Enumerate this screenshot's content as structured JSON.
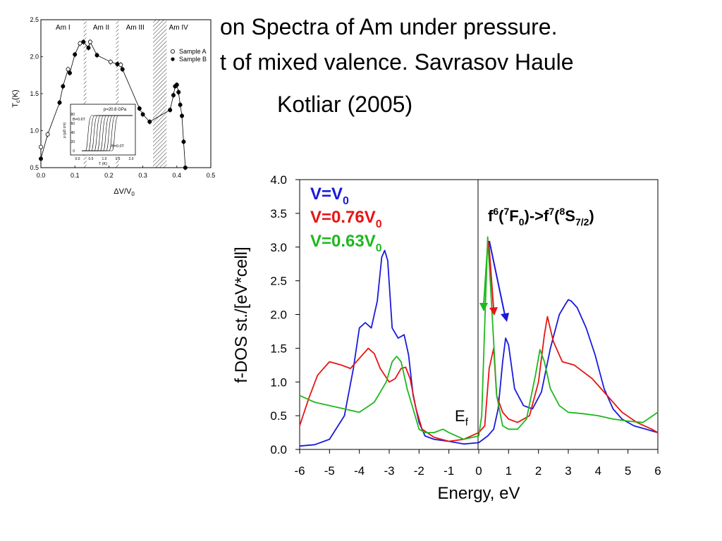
{
  "slide": {
    "title_line1": "on Spectra of Am under pressure.",
    "title_line2": "t of mixed valence. Savrasov Haule",
    "title_line3": "Kotliar (2005)"
  },
  "chart_data": [
    {
      "type": "scatter",
      "xlabel": "ΔV/V",
      "xlabel_sub": "0",
      "ylabel": "T",
      "ylabel_sub": "c",
      "ylabel_unit": "(K)",
      "xlim": [
        0,
        0.5
      ],
      "ylim": [
        0.5,
        2.5
      ],
      "x_ticks": [
        "0.0",
        "0.1",
        "0.2",
        "0.3",
        "0.4",
        "0.5"
      ],
      "y_ticks": [
        "0.5",
        "1.0",
        "1.5",
        "2.0",
        "2.5"
      ],
      "phases": [
        "Am I",
        "Am II",
        "Am III",
        "Am IV"
      ],
      "phase_boundaries": [
        0.13,
        0.225,
        0.33,
        0.37
      ],
      "legend": [
        {
          "label": "Sample A",
          "marker": "open-circle"
        },
        {
          "label": "Sample B",
          "marker": "filled-circle"
        }
      ],
      "series": [
        {
          "name": "Sample A",
          "marker": "open",
          "x": [
            0.0,
            0.02,
            0.08,
            0.115,
            0.145,
            0.205,
            0.235
          ],
          "y": [
            0.78,
            0.95,
            1.83,
            2.18,
            2.2,
            1.93,
            1.89
          ]
        },
        {
          "name": "Sample B",
          "marker": "filled",
          "x": [
            0.0,
            0.055,
            0.065,
            0.085,
            0.1,
            0.125,
            0.14,
            0.165,
            0.225,
            0.24,
            0.29,
            0.3,
            0.32,
            0.38,
            0.39,
            0.395,
            0.4,
            0.405,
            0.41,
            0.415,
            0.42,
            0.425
          ],
          "y": [
            0.62,
            1.38,
            1.6,
            1.78,
            2.03,
            2.2,
            2.12,
            2.02,
            1.9,
            1.83,
            1.3,
            1.22,
            1.12,
            1.28,
            1.48,
            1.6,
            1.62,
            1.52,
            1.35,
            1.2,
            0.85,
            0.5
          ]
        }
      ],
      "inset": {
        "label_pressure": "p=20.8 GPa",
        "label_b_high": "B=0.6T",
        "label_b_zero": "B=0.0T",
        "xlabel": "T (K)",
        "ylabel": "ρ (μΩ cm)",
        "x_ticks": [
          "0.0",
          "0.5",
          "1.0",
          "1.5",
          "2.0"
        ],
        "y_ticks": [
          "0",
          "20",
          "40",
          "60",
          "80"
        ]
      }
    },
    {
      "type": "line",
      "xlabel": "Energy, eV",
      "ylabel": "f-DOS st./[eV*cell]",
      "xlim": [
        -6,
        6
      ],
      "ylim": [
        0,
        4.0
      ],
      "x_ticks": [
        "-6",
        "-5",
        "-4",
        "-3",
        "-2",
        "-1",
        "0",
        "1",
        "2",
        "3",
        "4",
        "5",
        "6"
      ],
      "y_ticks": [
        "0.0",
        "0.5",
        "1.0",
        "1.5",
        "2.0",
        "2.5",
        "3.0",
        "3.5",
        "4.0"
      ],
      "fermi_label": "E",
      "fermi_label_sub": "f",
      "transition_label": {
        "a": "f",
        "b": "6",
        "c": "(",
        "d": "7",
        "e": "F",
        "f": "0",
        "g": ")->f",
        "h": "7",
        "i": "(",
        "j": "8",
        "k": "S",
        "l": "7/2",
        "m": ")"
      },
      "series": [
        {
          "name": "V=V",
          "name_sub": "0",
          "color": "#1a1adc",
          "x": [
            -6,
            -5.5,
            -5,
            -4.5,
            -4.2,
            -4.0,
            -3.8,
            -3.6,
            -3.4,
            -3.25,
            -3.15,
            -3.05,
            -2.9,
            -2.7,
            -2.5,
            -2.35,
            -2.2,
            -2.0,
            -1.8,
            -1.5,
            -1.0,
            -0.5,
            0,
            0.15,
            0.3,
            0.5,
            0.65,
            0.8,
            0.9,
            1.0,
            1.2,
            1.5,
            1.8,
            2.1,
            2.4,
            2.7,
            2.9,
            3.0,
            3.1,
            3.3,
            3.6,
            3.9,
            4.2,
            4.5,
            4.8,
            5.2,
            5.6,
            6
          ],
          "y": [
            0.05,
            0.07,
            0.15,
            0.5,
            1.2,
            1.8,
            1.88,
            1.8,
            2.2,
            2.85,
            2.95,
            2.8,
            1.8,
            1.65,
            1.7,
            1.4,
            0.8,
            0.4,
            0.2,
            0.15,
            0.12,
            0.08,
            0.1,
            0.15,
            0.2,
            0.3,
            0.6,
            1.3,
            1.65,
            1.55,
            0.9,
            0.65,
            0.6,
            0.85,
            1.5,
            2.0,
            2.15,
            2.22,
            2.2,
            2.1,
            1.8,
            1.4,
            0.9,
            0.6,
            0.45,
            0.35,
            0.3,
            0.25
          ]
        },
        {
          "name": "V=0.76V",
          "name_sub": "0",
          "color": "#e81414",
          "x": [
            -6,
            -5.7,
            -5.4,
            -5.0,
            -4.6,
            -4.3,
            -4.0,
            -3.7,
            -3.5,
            -3.3,
            -3.0,
            -2.8,
            -2.6,
            -2.45,
            -2.3,
            -2.1,
            -1.9,
            -1.5,
            -1.0,
            -0.5,
            0,
            0.2,
            0.35,
            0.5,
            0.6,
            0.8,
            1.0,
            1.3,
            1.7,
            2.0,
            2.2,
            2.3,
            2.5,
            2.8,
            3.2,
            3.8,
            4.3,
            4.8,
            5.3,
            5.8,
            6
          ],
          "y": [
            0.35,
            0.75,
            1.1,
            1.3,
            1.25,
            1.2,
            1.35,
            1.5,
            1.42,
            1.2,
            1.0,
            1.05,
            1.2,
            1.22,
            1.05,
            0.6,
            0.3,
            0.18,
            0.12,
            0.15,
            0.25,
            0.35,
            1.2,
            1.5,
            0.8,
            0.55,
            0.45,
            0.4,
            0.5,
            1.0,
            1.7,
            1.97,
            1.6,
            1.3,
            1.25,
            1.05,
            0.8,
            0.55,
            0.4,
            0.3,
            0.25
          ]
        },
        {
          "name": "V=0.63V",
          "name_sub": "0",
          "color": "#1fb81f",
          "x": [
            -6,
            -5.5,
            -5.0,
            -4.5,
            -4.0,
            -3.5,
            -3.1,
            -2.9,
            -2.75,
            -2.6,
            -2.4,
            -2.2,
            -2.0,
            -1.8,
            -1.5,
            -1.2,
            -1.0,
            -0.5,
            0,
            0.1,
            0.2,
            0.3,
            0.45,
            0.6,
            0.8,
            1.0,
            1.3,
            1.6,
            1.9,
            2.05,
            2.2,
            2.4,
            2.7,
            3.0,
            3.5,
            4.0,
            4.5,
            5.0,
            5.5,
            6
          ],
          "y": [
            0.8,
            0.7,
            0.65,
            0.6,
            0.55,
            0.7,
            1.0,
            1.3,
            1.38,
            1.3,
            0.9,
            0.6,
            0.3,
            0.25,
            0.25,
            0.3,
            0.25,
            0.15,
            0.2,
            0.5,
            1.85,
            3.15,
            2.0,
            0.8,
            0.35,
            0.3,
            0.3,
            0.45,
            1.1,
            1.48,
            1.3,
            0.9,
            0.65,
            0.55,
            0.53,
            0.5,
            0.45,
            0.42,
            0.4,
            0.55
          ]
        }
      ]
    }
  ]
}
